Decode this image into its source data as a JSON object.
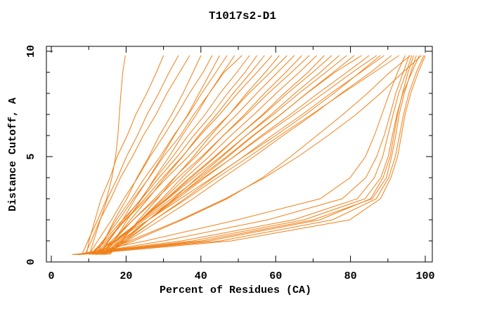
{
  "title": "T1017s2-D1",
  "colors": {
    "curve": "#f08018",
    "axis": "#000000",
    "background": "#ffffff"
  },
  "chart_data": {
    "type": "line",
    "title": "T1017s2-D1",
    "xlabel": "Percent of Residues (CA)",
    "ylabel": "Distance Cutoff, A",
    "xlim": [
      0,
      100
    ],
    "ylim": [
      0,
      10
    ],
    "grid": false,
    "legend": "none",
    "x_major_ticks": [
      0,
      20,
      40,
      60,
      80,
      100
    ],
    "x_minor_ticks": [
      10,
      30,
      50,
      70,
      90
    ],
    "x_tick_labels": [
      "0",
      "20",
      "40",
      "60",
      "80",
      "100"
    ],
    "y_major_ticks": [
      0,
      5,
      10
    ],
    "y_minor_ticks": [
      1,
      2,
      3,
      4,
      6,
      7,
      8,
      9
    ],
    "y_tick_labels": [
      "0",
      "5",
      "10"
    ],
    "series_color": "#f08018",
    "y_levels": [
      0.35,
      1,
      2,
      3,
      4,
      5,
      6,
      7,
      8,
      9,
      9.8
    ],
    "curves_x_percent": [
      [
        8.2,
        9.8,
        12.4,
        14.8,
        16.2,
        17.2,
        17.8,
        18.2,
        18.6,
        19.1,
        19.8
      ],
      [
        6.0,
        40.2,
        70.1,
        85.8,
        89.6,
        91.0,
        92.1,
        93.0,
        94.4,
        96.1,
        97.6
      ],
      [
        5.5,
        45.3,
        75.2,
        86.9,
        90.2,
        92.0,
        93.1,
        94.2,
        95.6,
        97.6,
        99.6
      ],
      [
        6.4,
        37.8,
        67.6,
        83.9,
        88.1,
        90.1,
        91.2,
        92.4,
        94.0,
        96.4,
        98.4
      ],
      [
        7.1,
        42.1,
        71.8,
        85.4,
        88.7,
        90.6,
        91.6,
        92.6,
        93.9,
        95.4,
        96.9
      ],
      [
        6.1,
        34.9,
        64.8,
        81.8,
        86.4,
        88.6,
        90.0,
        91.4,
        92.9,
        94.9,
        96.4
      ],
      [
        7.4,
        48.2,
        79.8,
        88.0,
        90.8,
        92.6,
        93.6,
        94.6,
        96.1,
        98.1,
        100.0
      ],
      [
        7.9,
        30.1,
        57.9,
        77.8,
        84.1,
        87.0,
        89.0,
        90.6,
        92.1,
        94.1,
        95.7
      ],
      [
        7.0,
        25.2,
        49.8,
        71.9,
        79.9,
        84.0,
        86.4,
        88.4,
        90.4,
        92.6,
        94.6
      ],
      [
        9.4,
        10.1,
        11.7,
        13.3,
        15.7,
        17.6,
        20.3,
        22.6,
        25.5,
        28.1,
        30.0
      ],
      [
        10.2,
        11.3,
        13.1,
        15.0,
        17.7,
        20.1,
        23.0,
        25.6,
        28.7,
        31.5,
        34.0
      ],
      [
        9.0,
        10.7,
        13.0,
        15.9,
        18.5,
        21.7,
        24.6,
        28.0,
        30.9,
        34.3,
        37.0
      ],
      [
        11.8,
        14.1,
        16.9,
        20.2,
        22.9,
        26.1,
        28.9,
        32.2,
        35.2,
        37.9,
        40.0
      ],
      [
        10.1,
        12.4,
        16.1,
        19.4,
        23.1,
        26.4,
        30.1,
        33.6,
        36.9,
        40.6,
        43.0
      ],
      [
        13.1,
        15.4,
        19.1,
        22.4,
        26.1,
        29.6,
        32.9,
        36.5,
        39.5,
        42.6,
        45.0
      ],
      [
        11.2,
        13.9,
        17.4,
        21.4,
        25.0,
        29.1,
        32.7,
        36.7,
        40.2,
        44.0,
        47.0
      ],
      [
        14.2,
        16.8,
        20.3,
        24.2,
        27.7,
        31.5,
        35.0,
        38.8,
        42.2,
        45.9,
        49.0
      ],
      [
        10.8,
        13.8,
        18.1,
        22.0,
        26.2,
        30.0,
        34.5,
        38.1,
        42.2,
        46.2,
        51.0
      ],
      [
        12.4,
        15.4,
        19.5,
        24.0,
        28.0,
        32.5,
        36.6,
        41.1,
        45.1,
        49.6,
        53.0
      ],
      [
        10.3,
        14.1,
        19.1,
        24.2,
        28.8,
        33.7,
        38.1,
        42.9,
        47.1,
        51.8,
        55.0
      ],
      [
        13.5,
        16.7,
        21.1,
        25.9,
        30.3,
        35.1,
        39.4,
        44.2,
        48.6,
        53.4,
        57.0
      ],
      [
        11.7,
        15.1,
        19.8,
        25.0,
        29.8,
        35.0,
        39.8,
        45.0,
        49.8,
        55.0,
        59.0
      ],
      [
        15.6,
        18.9,
        23.4,
        28.4,
        33.0,
        38.0,
        42.6,
        47.6,
        52.2,
        57.2,
        61.0
      ],
      [
        10.8,
        14.6,
        19.9,
        25.6,
        30.9,
        36.6,
        41.9,
        47.6,
        52.8,
        58.6,
        63.0
      ],
      [
        12.9,
        16.6,
        21.9,
        27.6,
        32.9,
        38.6,
        43.9,
        49.6,
        54.9,
        60.5,
        65.0
      ],
      [
        14.8,
        18.6,
        23.9,
        29.6,
        34.9,
        40.6,
        46.0,
        51.7,
        57.0,
        62.7,
        67.0
      ],
      [
        12.0,
        16.1,
        21.9,
        28.1,
        33.9,
        40.2,
        46.0,
        52.2,
        58.0,
        64.2,
        69.0
      ],
      [
        14.0,
        18.1,
        23.9,
        30.1,
        35.9,
        42.2,
        48.0,
        54.2,
        60.1,
        66.3,
        71.0
      ],
      [
        12.1,
        17.2,
        24.1,
        31.0,
        37.4,
        44.0,
        50.1,
        56.5,
        62.3,
        68.6,
        73.0
      ],
      [
        13.2,
        17.6,
        23.9,
        30.7,
        37.0,
        43.7,
        50.1,
        56.8,
        63.1,
        69.9,
        75.0
      ],
      [
        15.2,
        19.6,
        26.0,
        32.7,
        39.0,
        45.7,
        52.1,
        58.8,
        65.1,
        71.9,
        77.0
      ],
      [
        12.4,
        17.1,
        24.0,
        31.2,
        38.1,
        45.3,
        52.1,
        59.4,
        66.2,
        73.4,
        79.0
      ],
      [
        14.4,
        19.1,
        26.0,
        33.2,
        40.1,
        47.3,
        54.1,
        61.4,
        68.2,
        75.4,
        81.0
      ],
      [
        11.4,
        16.6,
        24.4,
        32.1,
        39.4,
        46.9,
        53.9,
        61.3,
        68.3,
        75.8,
        83.0
      ],
      [
        13.6,
        18.6,
        26.0,
        33.7,
        41.1,
        48.8,
        56.2,
        63.9,
        71.3,
        79.0,
        85.0
      ],
      [
        12.1,
        17.3,
        24.9,
        33.0,
        40.7,
        48.9,
        56.7,
        64.9,
        72.8,
        80.5,
        87.0
      ],
      [
        11.0,
        17.0,
        26.0,
        34.5,
        43.0,
        51.5,
        60.0,
        68.0,
        75.5,
        82.5,
        88.0
      ],
      [
        14.7,
        20.0,
        27.6,
        35.7,
        43.3,
        51.4,
        59.0,
        67.1,
        74.7,
        82.7,
        89.0
      ],
      [
        14.0,
        20.4,
        29.2,
        37.9,
        45.9,
        54.2,
        62.0,
        70.0,
        77.5,
        85.4,
        91.0
      ],
      [
        13.8,
        19.5,
        27.6,
        36.2,
        44.4,
        52.9,
        61.1,
        69.6,
        77.8,
        86.3,
        93.0
      ],
      [
        12.8,
        22.0,
        35.0,
        47.0,
        56.5,
        64.0,
        71.0,
        78.0,
        84.5,
        90.5,
        96.0
      ],
      [
        12.0,
        21.0,
        34.5,
        46.5,
        57.0,
        66.0,
        74.0,
        81.5,
        88.0,
        94.0,
        99.0
      ]
    ]
  }
}
